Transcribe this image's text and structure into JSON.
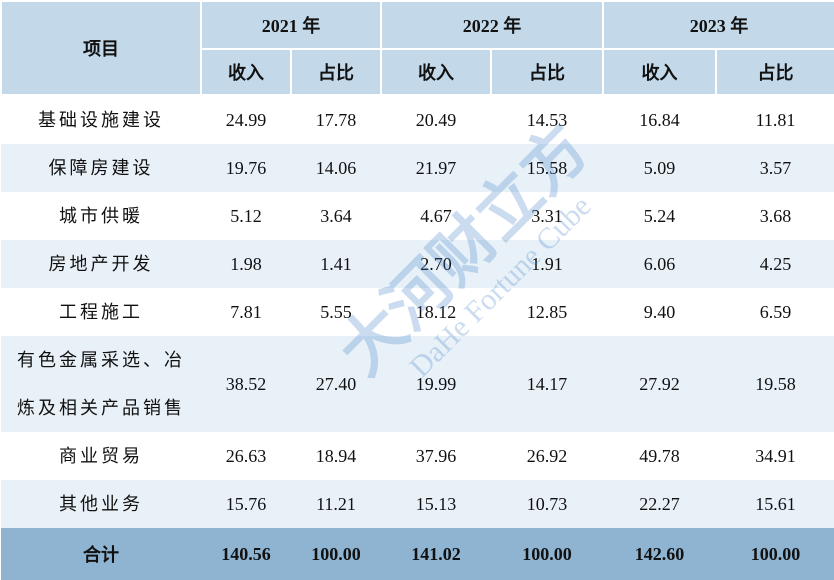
{
  "table": {
    "header": {
      "item": "项目",
      "years": [
        "2021 年",
        "2022 年",
        "2023 年"
      ],
      "sub": [
        "收入",
        "占比"
      ]
    },
    "rows": [
      [
        "基础设施建设",
        "24.99",
        "17.78",
        "20.49",
        "14.53",
        "16.84",
        "11.81"
      ],
      [
        "保障房建设",
        "19.76",
        "14.06",
        "21.97",
        "15.58",
        "5.09",
        "3.57"
      ],
      [
        "城市供暖",
        "5.12",
        "3.64",
        "4.67",
        "3.31",
        "5.24",
        "3.68"
      ],
      [
        "房地产开发",
        "1.98",
        "1.41",
        "2.70",
        "1.91",
        "6.06",
        "4.25"
      ],
      [
        "工程施工",
        "7.81",
        "5.55",
        "18.12",
        "12.85",
        "9.40",
        "6.59"
      ],
      [
        "有色金属采选、冶炼及相关产品销售",
        "38.52",
        "27.40",
        "19.99",
        "14.17",
        "27.92",
        "19.58"
      ],
      [
        "商业贸易",
        "26.63",
        "18.94",
        "37.96",
        "26.92",
        "49.78",
        "34.91"
      ],
      [
        "其他业务",
        "15.76",
        "11.21",
        "15.13",
        "10.73",
        "22.27",
        "15.61"
      ]
    ],
    "total": [
      "合计",
      "140.56",
      "100.00",
      "141.02",
      "100.00",
      "142.60",
      "100.00"
    ]
  },
  "watermark": {
    "brand": "大河财立方",
    "brand_en": "DaHe Fortune Cube"
  }
}
